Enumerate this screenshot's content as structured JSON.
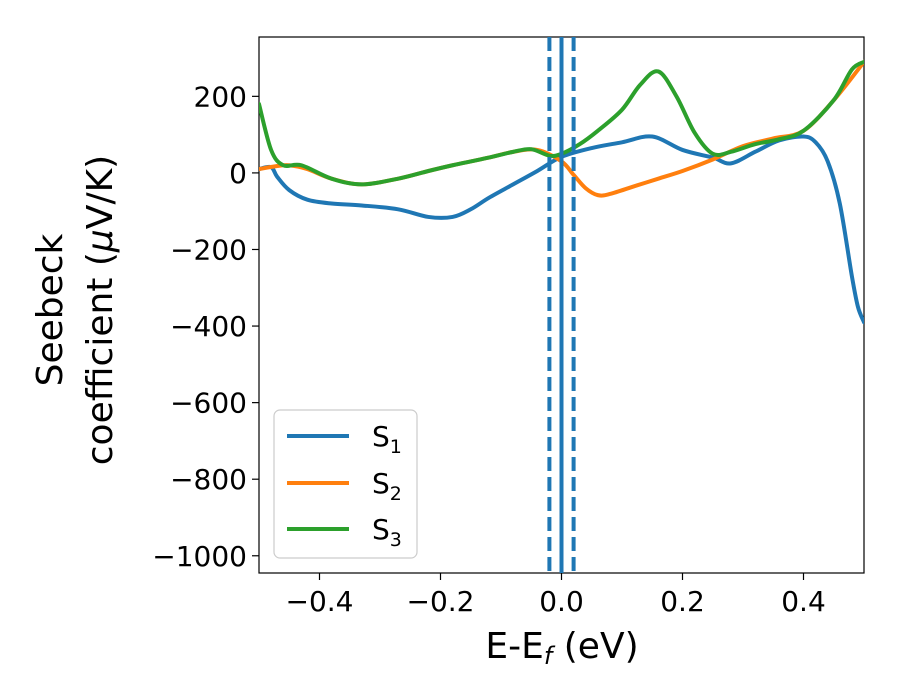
{
  "chart_data": {
    "type": "line",
    "title": "",
    "xlabel_main": "E-E",
    "xlabel_sub": "f",
    "xlabel_unit": " (eV)",
    "ylabel_line1": "Seebeck",
    "ylabel_line2_pre": "coefficient  (",
    "ylabel_mu": "μ",
    "ylabel_line2_post": "V/K)",
    "xlim": [
      -0.5,
      0.5
    ],
    "ylim": [
      -1045,
      355
    ],
    "xticks": [
      -0.4,
      -0.2,
      0.0,
      0.2,
      0.4
    ],
    "xtick_labels": [
      "−0.4",
      "−0.2",
      "0.0",
      "0.2",
      "0.4"
    ],
    "yticks": [
      200,
      0,
      -200,
      -400,
      -600,
      -800,
      -1000
    ],
    "ytick_labels": [
      "200",
      "0",
      "−200",
      "−400",
      "−600",
      "−800",
      "−1000"
    ],
    "grid": false,
    "legend_position": "lower-left",
    "vlines": [
      {
        "x": 0.0,
        "color": "#000000",
        "style": "dashed"
      },
      {
        "x": -0.02,
        "color": "#1f77b4",
        "style": "dashed"
      },
      {
        "x": 0.0,
        "color": "#1f77b4",
        "style": "solid"
      },
      {
        "x": 0.02,
        "color": "#1f77b4",
        "style": "dashed"
      }
    ],
    "series": [
      {
        "name": "S",
        "sub": "1",
        "color": "#1f77b4",
        "x": [
          -0.5,
          -0.48,
          -0.47,
          -0.45,
          -0.42,
          -0.38,
          -0.33,
          -0.27,
          -0.22,
          -0.18,
          -0.15,
          -0.12,
          -0.08,
          -0.04,
          0.0,
          0.05,
          0.1,
          0.15,
          0.2,
          0.25,
          0.28,
          0.32,
          0.36,
          0.4,
          0.42,
          0.44,
          0.46,
          0.48,
          0.49,
          0.5
        ],
        "y": [
          10,
          15,
          -10,
          -45,
          -70,
          -80,
          -85,
          -95,
          -115,
          -115,
          -95,
          -65,
          -30,
          5,
          42,
          65,
          80,
          95,
          60,
          40,
          25,
          55,
          85,
          95,
          80,
          30,
          -80,
          -270,
          -350,
          -390
        ]
      },
      {
        "name": "S",
        "sub": "2",
        "color": "#ff7f0e",
        "x": [
          -0.5,
          -0.47,
          -0.45,
          -0.42,
          -0.38,
          -0.33,
          -0.27,
          -0.22,
          -0.18,
          -0.15,
          -0.12,
          -0.08,
          -0.04,
          0.0,
          0.02,
          0.04,
          0.06,
          0.08,
          0.12,
          0.16,
          0.2,
          0.25,
          0.3,
          0.35,
          0.4,
          0.45,
          0.5
        ],
        "y": [
          10,
          18,
          20,
          10,
          -15,
          -30,
          -15,
          5,
          20,
          30,
          40,
          55,
          60,
          30,
          -5,
          -40,
          -58,
          -55,
          -35,
          -15,
          5,
          35,
          70,
          90,
          110,
          190,
          290
        ]
      },
      {
        "name": "S",
        "sub": "3",
        "color": "#2ca02c",
        "x": [
          -0.5,
          -0.48,
          -0.46,
          -0.43,
          -0.38,
          -0.33,
          -0.27,
          -0.22,
          -0.18,
          -0.15,
          -0.12,
          -0.08,
          -0.05,
          -0.02,
          0.0,
          0.03,
          0.06,
          0.1,
          0.13,
          0.16,
          0.19,
          0.22,
          0.25,
          0.28,
          0.32,
          0.36,
          0.4,
          0.45,
          0.48,
          0.5
        ],
        "y": [
          180,
          60,
          20,
          20,
          -15,
          -30,
          -15,
          5,
          20,
          30,
          40,
          55,
          62,
          45,
          50,
          75,
          110,
          165,
          230,
          265,
          200,
          105,
          50,
          55,
          75,
          88,
          110,
          190,
          270,
          290
        ]
      }
    ]
  }
}
